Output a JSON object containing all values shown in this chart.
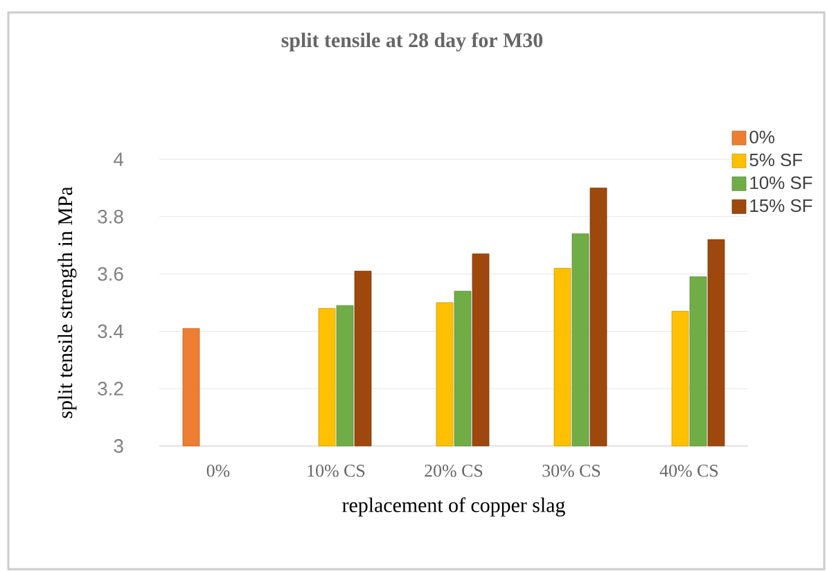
{
  "chart_data": {
    "type": "bar",
    "title": "split tensile at 28 day for M30",
    "xlabel": "replacement of copper slag",
    "ylabel": "split tensile strength in MPa",
    "categories": [
      "0%",
      "10% CS",
      "20% CS",
      "30% CS",
      "40% CS"
    ],
    "series": [
      {
        "name": "0%",
        "color": "#ed7d31",
        "values": [
          3.41,
          null,
          null,
          null,
          null
        ]
      },
      {
        "name": "5% SF",
        "color": "#ffc000",
        "values": [
          null,
          3.48,
          3.5,
          3.62,
          3.47
        ]
      },
      {
        "name": "10% SF",
        "color": "#70ad47",
        "values": [
          null,
          3.49,
          3.54,
          3.74,
          3.59
        ]
      },
      {
        "name": "15% SF",
        "color": "#9e480e",
        "values": [
          null,
          3.61,
          3.67,
          3.9,
          3.72
        ]
      }
    ],
    "ylim": [
      3,
      4
    ],
    "yticks": [
      3,
      3.2,
      3.4,
      3.6,
      3.8,
      4
    ],
    "grid": "y",
    "legend": "top right"
  }
}
